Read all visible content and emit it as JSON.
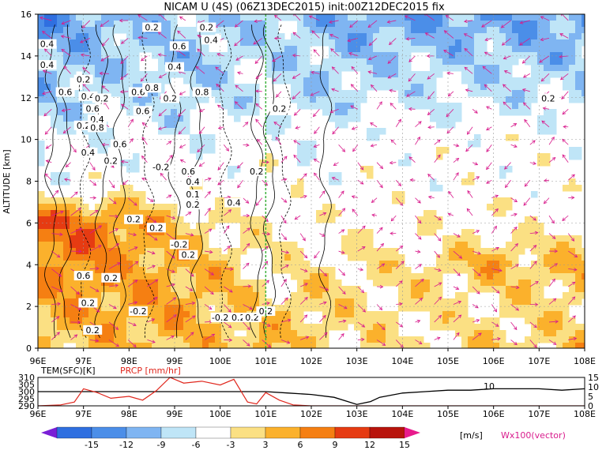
{
  "chart_data": [
    {
      "type": "heatmap",
      "title": "NICAM U (4S) (06Z13DEC2015) init:00Z12DEC2015 fix",
      "xlabel": "",
      "ylabel": "ALTITUDE [km]",
      "x_range": [
        96,
        108
      ],
      "y_range": [
        0,
        16
      ],
      "x_tick_labels": [
        "96E",
        "97E",
        "98E",
        "99E",
        "100E",
        "101E",
        "102E",
        "103E",
        "104E",
        "105E",
        "106E",
        "107E",
        "108E"
      ],
      "y_tick_labels": [
        "0",
        "2",
        "4",
        "6",
        "8",
        "10",
        "12",
        "14",
        "16"
      ],
      "contour_labels": [
        "0.4",
        "0.4",
        "0.2",
        "0.6",
        "0.4",
        "0.2",
        "0.6",
        "0.4",
        "0.2",
        "0.6",
        "0.8",
        "0.6",
        "0.8",
        "0.2",
        "0.4",
        "0.6",
        "0.2",
        "0.4",
        "0.2",
        "0.8",
        "0.6",
        "0.4",
        "0.2",
        "-0.2",
        "0.6",
        "0.4",
        "0.1",
        "0.2",
        "0.2",
        "0.2",
        "0.4",
        "0.2",
        "0.2",
        "-0.2",
        "0.2",
        "0.6",
        "0.2",
        "0.2",
        "0.2",
        "-0.2",
        "-0.2",
        "0.2",
        "0.2",
        "0.2",
        "0.2"
      ],
      "green_line_lon": 101,
      "colorbar": {
        "ticks": [
          "-15",
          "-12",
          "-9",
          "-6",
          "-3",
          "3",
          "6",
          "9",
          "12",
          "15"
        ],
        "unit": "[m/s]",
        "colors": [
          "#7a1fd6",
          "#2f6fe0",
          "#4b8ee8",
          "#7fb5f2",
          "#bfe5f7",
          "#ffffff",
          "#fbe083",
          "#fbb12c",
          "#f57f12",
          "#e63b12",
          "#b8140c",
          "#e81b8c"
        ]
      },
      "vector_label": "Wx100(vector)",
      "u_sample": [
        [
          6,
          6,
          6,
          6,
          6,
          8,
          4,
          4,
          4,
          3,
          6,
          4,
          6
        ],
        [
          7,
          8,
          8,
          8,
          6,
          4,
          6,
          3,
          4,
          3,
          3,
          4,
          4
        ],
        [
          9,
          10,
          8,
          7,
          6,
          3,
          3,
          4,
          3,
          5,
          7,
          6,
          7
        ],
        [
          12,
          11,
          9,
          6,
          3,
          2,
          1,
          1,
          1,
          1,
          2,
          1,
          2
        ],
        [
          -1,
          0,
          0,
          0,
          0,
          1,
          0,
          0,
          0,
          0,
          0,
          0,
          0
        ],
        [
          -3,
          -2,
          -1,
          -2,
          -1,
          0,
          -2,
          0,
          0,
          0,
          0,
          0,
          0
        ],
        [
          -6,
          -5,
          -4,
          -5,
          -4,
          -3,
          -5,
          -4,
          -3,
          -3,
          -4,
          -3,
          -4
        ],
        [
          -8,
          -6,
          -5,
          -6,
          -5,
          -4,
          -5,
          -6,
          -5,
          -6,
          -5,
          -7,
          -5
        ],
        [
          -10,
          -8,
          -7,
          -5,
          -6,
          -5,
          -7,
          -8,
          -9,
          -8,
          -9,
          -8,
          -9
        ]
      ]
    },
    {
      "type": "line",
      "x_range": [
        96,
        108
      ],
      "series": [
        {
          "name": "TEM(SFC)[K]",
          "x": [
            96,
            96.5,
            97,
            97.5,
            98,
            98.5,
            99,
            99.5,
            100,
            100.5,
            101,
            101.5,
            102,
            102.5,
            103,
            103.3,
            103.5,
            104,
            104.5,
            105,
            105.5,
            106,
            106.5,
            107,
            107.5,
            108
          ],
          "values": [
            300,
            300,
            300,
            300,
            300,
            300,
            300,
            300,
            300,
            300,
            300,
            299,
            298,
            296,
            291,
            293,
            296,
            299,
            300,
            301,
            301,
            302,
            302,
            302,
            301,
            302
          ]
        },
        {
          "name": "PRCP [mm/hr]",
          "x": [
            96,
            96.5,
            96.8,
            97,
            97.3,
            97.6,
            98,
            98.3,
            98.6,
            98.9,
            99.2,
            99.6,
            100,
            100.3,
            100.6,
            100.8,
            101,
            101.3,
            101.6,
            102,
            103,
            104,
            105,
            106,
            107,
            108
          ],
          "values": [
            0,
            0.5,
            2,
            9,
            7,
            4,
            5,
            3,
            8,
            15,
            12,
            13,
            11,
            14,
            2,
            1,
            7,
            3,
            0.5,
            0,
            0,
            0,
            0,
            0,
            0,
            0
          ]
        }
      ],
      "left_ticks": [
        "290",
        "295",
        "300",
        "305",
        "310"
      ],
      "right_ticks": [
        "0",
        "5",
        "10",
        "15"
      ],
      "annotation": "10",
      "x_tick_labels": [
        "96E",
        "97E",
        "98E",
        "99E",
        "100E",
        "101E",
        "102E",
        "103E",
        "104E",
        "105E",
        "106E",
        "107E",
        "108E"
      ]
    }
  ]
}
